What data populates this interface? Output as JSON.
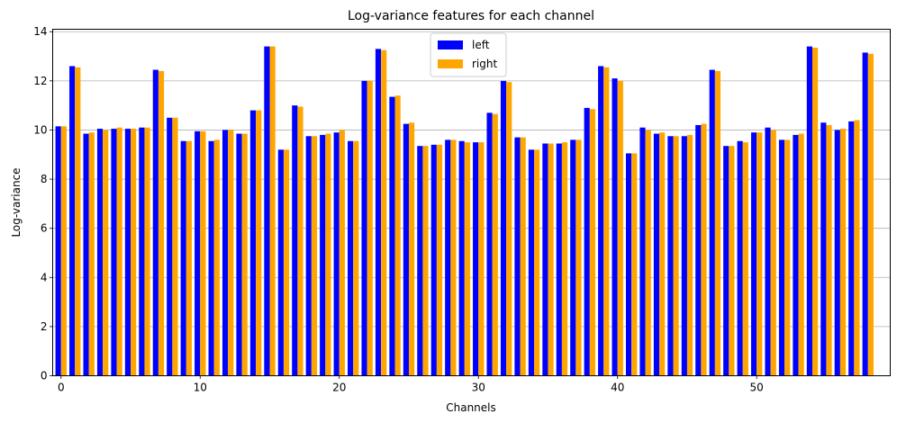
{
  "chart_data": {
    "type": "bar",
    "title": "Log-variance features for each channel",
    "xlabel": "Channels",
    "ylabel": "Log-variance",
    "x": [
      0,
      1,
      2,
      3,
      4,
      5,
      6,
      7,
      8,
      9,
      10,
      11,
      12,
      13,
      14,
      15,
      16,
      17,
      18,
      19,
      20,
      21,
      22,
      23,
      24,
      25,
      26,
      27,
      28,
      29,
      30,
      31,
      32,
      33,
      34,
      35,
      36,
      37,
      38,
      39,
      40,
      41,
      42,
      43,
      44,
      45,
      46,
      47,
      48,
      49,
      50,
      51,
      52,
      53,
      54,
      55,
      56,
      57,
      58
    ],
    "xlim": [
      -0.6,
      59.6
    ],
    "ylim": [
      0,
      14.1
    ],
    "xticks": [
      0,
      10,
      20,
      30,
      40,
      50
    ],
    "yticks": [
      0,
      2,
      4,
      6,
      8,
      10,
      12,
      14
    ],
    "grid": "y",
    "legend_position": "top-center",
    "series": [
      {
        "name": "left",
        "color": "#0000ff",
        "values": [
          10.15,
          12.6,
          9.85,
          10.05,
          10.05,
          10.05,
          10.1,
          12.45,
          10.5,
          9.55,
          9.95,
          9.55,
          10.0,
          9.85,
          10.8,
          13.4,
          9.2,
          11.0,
          9.75,
          9.8,
          9.9,
          9.55,
          12.0,
          13.3,
          11.35,
          10.25,
          9.35,
          9.4,
          9.6,
          9.55,
          9.5,
          10.7,
          12.0,
          9.7,
          9.2,
          9.45,
          9.45,
          9.6,
          10.9,
          12.6,
          12.1,
          9.05,
          10.1,
          9.85,
          9.75,
          9.75,
          10.2,
          12.45,
          9.35,
          9.55,
          9.9,
          10.1,
          9.6,
          9.8,
          13.4,
          10.3,
          10.0,
          10.35,
          13.15
        ]
      },
      {
        "name": "right",
        "color": "#ffa500",
        "values": [
          10.15,
          12.55,
          9.9,
          10.0,
          10.1,
          10.05,
          10.1,
          12.4,
          10.5,
          9.55,
          9.95,
          9.6,
          10.0,
          9.85,
          10.8,
          13.4,
          9.2,
          10.95,
          9.75,
          9.85,
          10.0,
          9.55,
          12.0,
          13.25,
          11.4,
          10.3,
          9.35,
          9.4,
          9.6,
          9.5,
          9.5,
          10.65,
          11.95,
          9.7,
          9.2,
          9.45,
          9.5,
          9.6,
          10.85,
          12.55,
          12.0,
          9.05,
          10.0,
          9.9,
          9.75,
          9.8,
          10.25,
          12.4,
          9.35,
          9.5,
          9.9,
          10.0,
          9.6,
          9.85,
          13.35,
          10.2,
          10.05,
          10.4,
          13.1
        ]
      }
    ]
  }
}
